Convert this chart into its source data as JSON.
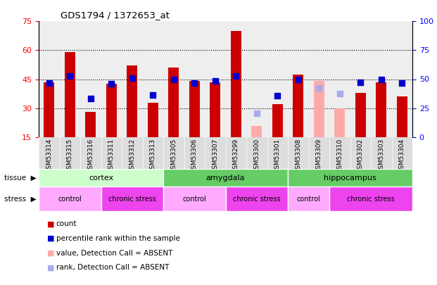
{
  "title": "GDS1794 / 1372653_at",
  "samples": [
    "GSM53314",
    "GSM53315",
    "GSM53316",
    "GSM53311",
    "GSM53312",
    "GSM53313",
    "GSM53305",
    "GSM53306",
    "GSM53307",
    "GSM53299",
    "GSM53300",
    "GSM53301",
    "GSM53308",
    "GSM53309",
    "GSM53310",
    "GSM53302",
    "GSM53303",
    "GSM53304"
  ],
  "count_values": [
    43.5,
    59.0,
    28.0,
    42.5,
    52.0,
    33.0,
    51.0,
    44.0,
    43.5,
    70.0,
    null,
    32.0,
    47.5,
    null,
    null,
    38.0,
    43.5,
    36.0
  ],
  "count_absent": [
    false,
    false,
    false,
    false,
    false,
    false,
    false,
    false,
    false,
    false,
    true,
    false,
    false,
    true,
    true,
    false,
    false,
    false
  ],
  "count_absent_values": [
    null,
    null,
    null,
    null,
    null,
    null,
    null,
    null,
    null,
    null,
    21.0,
    null,
    null,
    44.0,
    30.0,
    null,
    null,
    null
  ],
  "percentile_values": [
    43.0,
    46.5,
    35.0,
    42.5,
    45.5,
    37.0,
    45.0,
    43.0,
    44.0,
    46.5,
    null,
    36.5,
    45.0,
    null,
    null,
    43.5,
    45.0,
    43.0
  ],
  "percentile_absent": [
    false,
    false,
    false,
    false,
    false,
    false,
    false,
    false,
    false,
    false,
    true,
    false,
    false,
    true,
    true,
    false,
    false,
    false
  ],
  "percentile_absent_values": [
    null,
    null,
    null,
    null,
    null,
    null,
    null,
    null,
    null,
    null,
    27.5,
    null,
    null,
    40.5,
    37.5,
    null,
    null,
    null
  ],
  "tissue_groups": [
    {
      "label": "cortex",
      "start": 0,
      "end": 5,
      "color": "#ccffcc"
    },
    {
      "label": "amygdala",
      "start": 6,
      "end": 11,
      "color": "#66dd66"
    },
    {
      "label": "hippocampus",
      "start": 12,
      "end": 17,
      "color": "#66dd66"
    }
  ],
  "stress_groups": [
    {
      "label": "control",
      "start": 0,
      "end": 2,
      "color": "#ffaaff"
    },
    {
      "label": "chronic stress",
      "start": 3,
      "end": 5,
      "color": "#ee44ee"
    },
    {
      "label": "control",
      "start": 6,
      "end": 8,
      "color": "#ffaaff"
    },
    {
      "label": "chronic stress",
      "start": 9,
      "end": 11,
      "color": "#ee44ee"
    },
    {
      "label": "control",
      "start": 12,
      "end": 13,
      "color": "#ffaaff"
    },
    {
      "label": "chronic stress",
      "start": 14,
      "end": 17,
      "color": "#ee44ee"
    }
  ],
  "ylim_left": [
    15,
    75
  ],
  "ylim_right": [
    0,
    100
  ],
  "yticks_left": [
    15,
    30,
    45,
    60,
    75
  ],
  "yticks_right": [
    0,
    25,
    50,
    75,
    100
  ],
  "bar_width": 0.5,
  "bar_color": "#cc0000",
  "bar_absent_color": "#ffaaaa",
  "dot_color": "#0000cc",
  "dot_absent_color": "#aaaaee",
  "plot_bg": "#ffffff",
  "tissue_row_color_light": "#ccffcc",
  "tissue_row_color_dark": "#55cc55",
  "stress_control_color": "#ffaaff",
  "stress_chronic_color": "#ee44ee",
  "grid_color": "#000000",
  "grid_yticks": [
    30,
    45,
    60
  ]
}
